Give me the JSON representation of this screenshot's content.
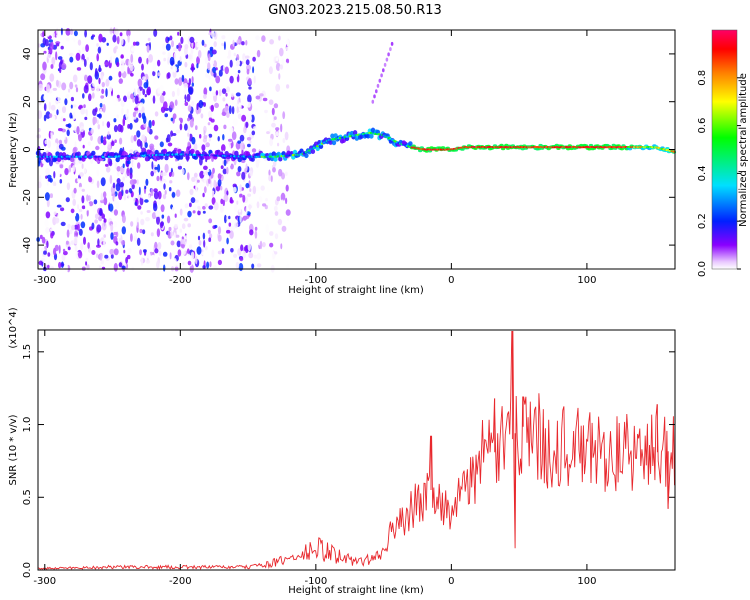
{
  "title": "GN03.2023.215.08.50.R13",
  "chart_data": [
    {
      "type": "heatmap",
      "xlabel": "Height of straight line (km)",
      "ylabel": "Frequency (Hz)",
      "xlim": [
        -305,
        165
      ],
      "ylim": [
        -50,
        50
      ],
      "xticks": [
        -300,
        -200,
        -100,
        0,
        100
      ],
      "yticks": [
        -40,
        -20,
        0,
        20,
        40
      ],
      "xticklabels": [
        "-300",
        "-200",
        "-100",
        "0",
        "100"
      ],
      "yticklabels": [
        "-40",
        "-20",
        "0",
        "20",
        "40"
      ],
      "colorbar": {
        "label": "Normalized spectral amplitude",
        "range": [
          0,
          1
        ],
        "ticks": [
          0.0,
          0.2,
          0.4,
          0.6,
          0.8
        ],
        "ticklabels": [
          "0.0",
          "0.2",
          "0.4",
          "0.6",
          "0.8"
        ]
      },
      "ridge": {
        "x": [
          -300,
          -250,
          -200,
          -150,
          -130,
          -110,
          -100,
          -90,
          -80,
          -70,
          -60,
          -50,
          -40,
          -30,
          -20,
          -10,
          0,
          10,
          50,
          100,
          150,
          165
        ],
        "freq": [
          -3,
          -3,
          -2,
          -3,
          -3,
          -2,
          1,
          4,
          5,
          6,
          7,
          6,
          3,
          1,
          0,
          0,
          0,
          1,
          1,
          1,
          1,
          -1
        ]
      },
      "scatter_regions": [
        {
          "x": [
            -305,
            -145
          ],
          "freq": [
            -50,
            50
          ],
          "density": "high"
        },
        {
          "x": [
            -145,
            -120
          ],
          "freq": [
            -50,
            50
          ],
          "density": "low"
        }
      ]
    },
    {
      "type": "line",
      "xlabel": "Height of straight line (km)",
      "ylabel": "SNR (10 * v/v)",
      "scale_label": "(x10^4)",
      "xlim": [
        -305,
        165
      ],
      "ylim": [
        0,
        1.65
      ],
      "xticks": [
        -300,
        -200,
        -100,
        0,
        100
      ],
      "yticks": [
        0.0,
        0.5,
        1.0,
        1.5
      ],
      "xticklabels": [
        "-300",
        "-200",
        "-100",
        "0",
        "100"
      ],
      "yticklabels": [
        "0.0",
        "0.5",
        "1.0",
        "1.5"
      ],
      "color": "#e8282d",
      "envelope": {
        "x": [
          -305,
          -250,
          -200,
          -150,
          -130,
          -110,
          -100,
          -90,
          -80,
          -70,
          -60,
          -50,
          -45,
          -40,
          -30,
          -20,
          -15,
          -10,
          -5,
          0,
          10,
          20,
          30,
          40,
          45,
          50,
          60,
          70,
          80,
          100,
          120,
          140,
          165
        ],
        "y": [
          0.01,
          0.02,
          0.02,
          0.02,
          0.05,
          0.1,
          0.15,
          0.12,
          0.08,
          0.06,
          0.07,
          0.12,
          0.25,
          0.3,
          0.42,
          0.5,
          0.55,
          0.5,
          0.45,
          0.38,
          0.55,
          0.75,
          0.8,
          0.85,
          0.9,
          1.0,
          0.95,
          0.85,
          0.85,
          0.82,
          0.8,
          0.8,
          0.82
        ]
      },
      "peaks": [
        {
          "x": 45,
          "y": 1.64
        },
        {
          "x": 32,
          "y": 1.18
        },
        {
          "x": 53,
          "y": 1.19
        },
        {
          "x": -15,
          "y": 0.92
        },
        {
          "x": 152,
          "y": 1.14
        },
        {
          "x": 47,
          "y": 0.15
        },
        {
          "x": 160,
          "y": 0.42
        }
      ]
    }
  ]
}
